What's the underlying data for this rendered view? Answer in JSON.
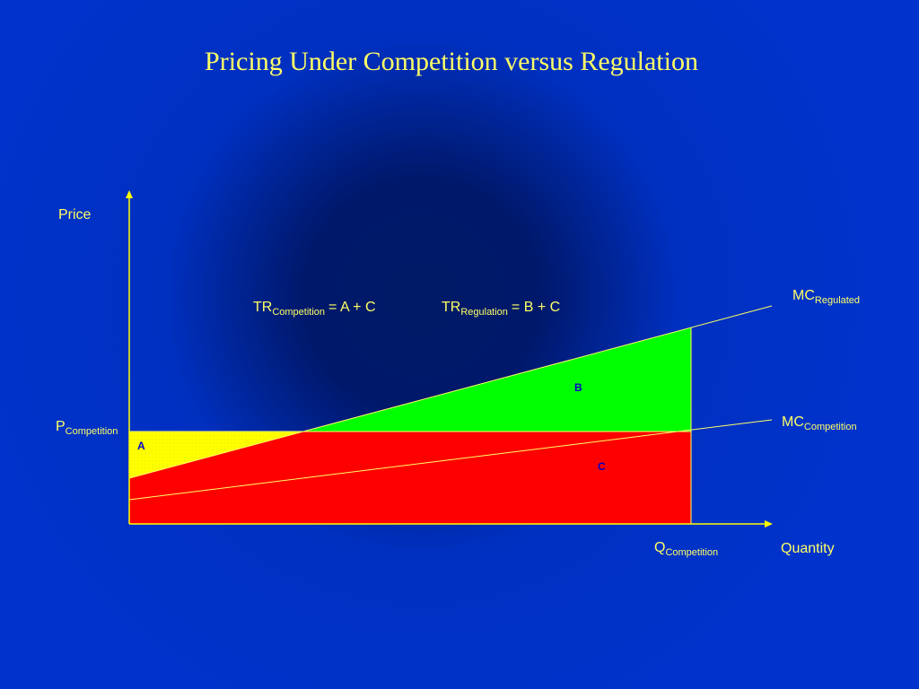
{
  "title": "Pricing Under Competition versus Regulation",
  "axes": {
    "y_label": "Price",
    "x_label": "Quantity"
  },
  "labels": {
    "p_competition": {
      "base": "P",
      "sub": "Competition"
    },
    "q_competition": {
      "base": "Q",
      "sub": "Competition"
    },
    "mc_regulated": {
      "base": "MC",
      "sub": "Regulated"
    },
    "mc_competition": {
      "base": "MC",
      "sub": "Competition"
    },
    "tr_competition": {
      "base": "TR",
      "sub": "Competition",
      "rest": "= A + C"
    },
    "tr_regulation": {
      "base": "TR",
      "sub": "Regulation",
      "rest": "= B + C"
    }
  },
  "areas": [
    "A",
    "B",
    "C"
  ]
}
